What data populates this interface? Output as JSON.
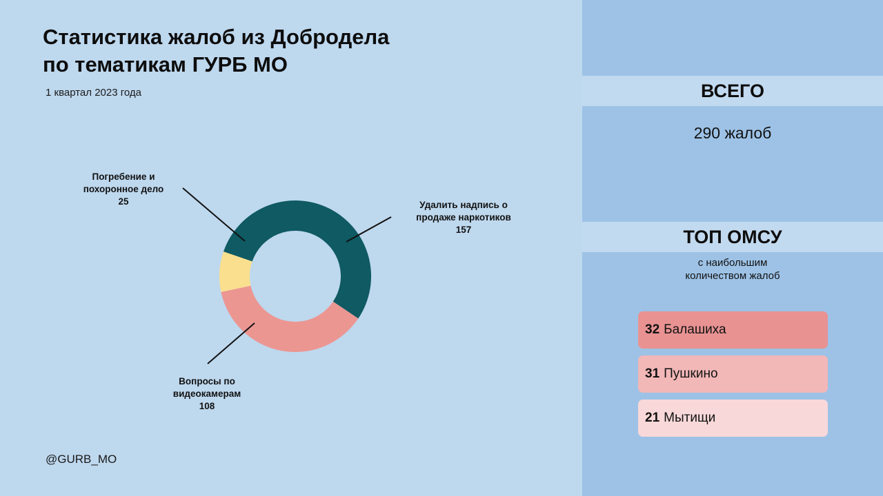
{
  "header": {
    "title_line1": "Статистика жалоб из Добродела",
    "title_line2": "по тематикам ГУРБ МО",
    "subtitle": "1 квартал 2023 года"
  },
  "footer": {
    "handle": "@GURB_MO"
  },
  "chart_data": {
    "type": "pie",
    "variant": "donut",
    "slices": [
      {
        "label_line1": "Удалить надпись о",
        "label_line2": "продаже наркотиков",
        "value": 157,
        "color": "#0f5a63"
      },
      {
        "label_line1": "Вопросы по",
        "label_line2": "видеокамерам",
        "value": 108,
        "color": "#ec9692"
      },
      {
        "label_line1": "Погребение и",
        "label_line2": "похоронное дело",
        "value": 25,
        "color": "#fadf8f"
      }
    ]
  },
  "summary": {
    "total_heading": "ВСЕГО",
    "total_value": "290 жалоб",
    "top_heading": "ТОП ОМСУ",
    "top_sub_line1": "с наибольшим",
    "top_sub_line2": "количеством жалоб",
    "top": [
      {
        "count": "32",
        "name": "Балашиха",
        "color": "#e89292"
      },
      {
        "count": "31",
        "name": "Пушкино",
        "color": "#f2b7b7"
      },
      {
        "count": "21",
        "name": "Мытищи",
        "color": "#f8d8d8"
      }
    ]
  },
  "colors": {
    "background": "#bed8ee",
    "panel": "#9dc2e6",
    "band": "#c2daef"
  }
}
